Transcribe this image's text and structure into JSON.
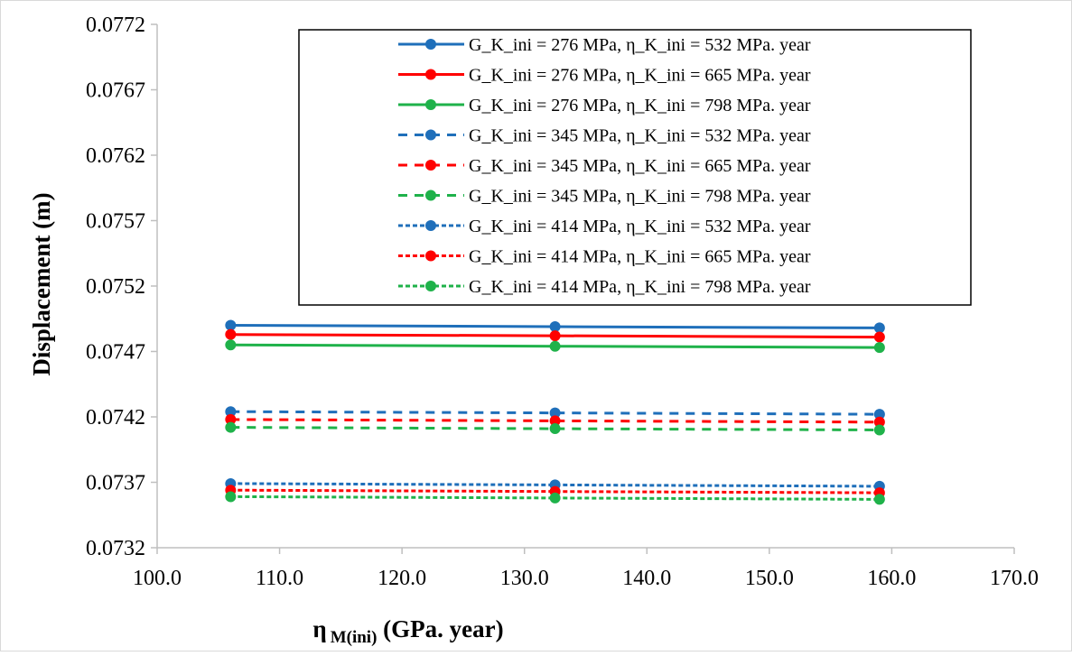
{
  "chart_data": {
    "type": "line",
    "title": "",
    "xlabel": {
      "main": "η",
      "sub": "M(ini)",
      "rest": " (GPa. year)"
    },
    "ylabel": "Displacement (m)",
    "xlim": [
      100,
      170
    ],
    "ylim": [
      0.0732,
      0.0772
    ],
    "x_ticks": [
      "100.0",
      "110.0",
      "120.0",
      "130.0",
      "140.0",
      "150.0",
      "160.0",
      "170.0"
    ],
    "y_ticks": [
      "0.0732",
      "0.0737",
      "0.0742",
      "0.0747",
      "0.0752",
      "0.0757",
      "0.0762",
      "0.0767",
      "0.0772"
    ],
    "grid": false,
    "legend_position": "top-right",
    "x": [
      106.0,
      132.5,
      159.0
    ],
    "series": [
      {
        "name": "G_K_ini = 276 MPa, η_K_ini = 532 MPa. year",
        "color": "#1f6fba",
        "dash": "solid",
        "values": [
          0.0749,
          0.07489,
          0.07488
        ]
      },
      {
        "name": "G_K_ini = 276 MPa, η_K_ini = 665 MPa. year",
        "color": "#ff0000",
        "dash": "solid",
        "values": [
          0.07483,
          0.07482,
          0.07481
        ]
      },
      {
        "name": "G_K_ini = 276 MPa, η_K_ini = 798 MPa. year",
        "color": "#1fb24a",
        "dash": "solid",
        "values": [
          0.07475,
          0.07474,
          0.07473
        ]
      },
      {
        "name": "G_K_ini = 345 MPa, η_K_ini = 532 MPa. year",
        "color": "#1f6fba",
        "dash": "dash",
        "values": [
          0.07424,
          0.07423,
          0.07422
        ]
      },
      {
        "name": "G_K_ini = 345 MPa, η_K_ini = 665 MPa. year",
        "color": "#ff0000",
        "dash": "dash",
        "values": [
          0.07418,
          0.07417,
          0.07416
        ]
      },
      {
        "name": "G_K_ini = 345 MPa, η_K_ini = 798 MPa. year",
        "color": "#1fb24a",
        "dash": "dash",
        "values": [
          0.07412,
          0.07411,
          0.0741
        ]
      },
      {
        "name": "G_K_ini = 414 MPa, η_K_ini = 532 MPa. year",
        "color": "#1f6fba",
        "dash": "dot",
        "values": [
          0.07369,
          0.07368,
          0.07367
        ]
      },
      {
        "name": "G_K_ini = 414 MPa, η_K_ini = 665 MPa. year",
        "color": "#ff0000",
        "dash": "dot",
        "values": [
          0.07364,
          0.07363,
          0.07362
        ]
      },
      {
        "name": "G_K_ini = 414 MPa, η_K_ini = 798 MPa. year",
        "color": "#1fb24a",
        "dash": "dot",
        "values": [
          0.07359,
          0.07358,
          0.07357
        ]
      }
    ]
  }
}
